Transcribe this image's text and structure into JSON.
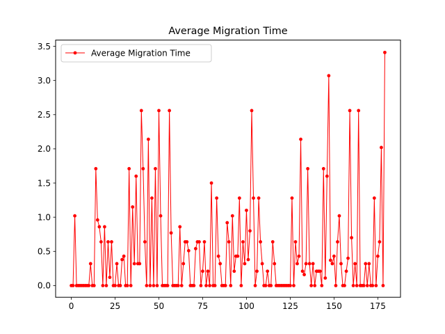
{
  "chart_data": {
    "type": "line",
    "title": "Average Migration Time",
    "xlabel": "",
    "ylabel": "",
    "xlim": [
      -8.95,
      187.95
    ],
    "ylim": [
      -0.171,
      3.591
    ],
    "x_ticks": [
      0,
      25,
      50,
      75,
      100,
      125,
      150,
      175
    ],
    "y_ticks": [
      0.0,
      0.5,
      1.0,
      1.5,
      2.0,
      2.5,
      3.0,
      3.5
    ],
    "x_tick_labels": [
      "0",
      "25",
      "50",
      "75",
      "100",
      "125",
      "150",
      "175"
    ],
    "y_tick_labels": [
      "0.0",
      "0.5",
      "1.0",
      "1.5",
      "2.0",
      "2.5",
      "3.0",
      "3.5"
    ],
    "grid": false,
    "legend_position": "upper left",
    "series": [
      {
        "name": "Average Migration Time",
        "color": "#ff0000",
        "marker": "circle",
        "x": [
          0,
          1,
          2,
          3,
          4,
          5,
          6,
          7,
          8,
          9,
          10,
          11,
          12,
          13,
          14,
          15,
          16,
          17,
          18,
          19,
          20,
          21,
          22,
          23,
          24,
          25,
          26,
          27,
          28,
          29,
          30,
          31,
          32,
          33,
          34,
          35,
          36,
          37,
          38,
          39,
          40,
          41,
          42,
          43,
          44,
          45,
          46,
          47,
          48,
          49,
          50,
          51,
          52,
          53,
          54,
          55,
          56,
          57,
          58,
          59,
          60,
          61,
          62,
          63,
          64,
          65,
          66,
          67,
          68,
          69,
          70,
          71,
          72,
          73,
          74,
          75,
          76,
          77,
          78,
          79,
          80,
          81,
          82,
          83,
          84,
          85,
          86,
          87,
          88,
          89,
          90,
          91,
          92,
          93,
          94,
          95,
          96,
          97,
          98,
          99,
          100,
          101,
          102,
          103,
          104,
          105,
          106,
          107,
          108,
          109,
          110,
          111,
          112,
          113,
          114,
          115,
          116,
          117,
          118,
          119,
          120,
          121,
          122,
          123,
          124,
          125,
          126,
          127,
          128,
          129,
          130,
          131,
          132,
          133,
          134,
          135,
          136,
          137,
          138,
          139,
          140,
          141,
          142,
          143,
          144,
          145,
          146,
          147,
          148,
          149,
          150,
          151,
          152,
          153,
          154,
          155,
          156,
          157,
          158,
          159,
          160,
          161,
          162,
          163,
          164,
          165,
          166,
          167,
          168,
          169,
          170,
          171,
          172,
          173,
          174,
          175,
          176,
          177,
          178,
          179
        ],
        "values": [
          0.0,
          0.0,
          1.02,
          0.0,
          0.0,
          0.0,
          0.0,
          0.0,
          0.0,
          0.0,
          0.0,
          0.32,
          0.0,
          0.0,
          1.71,
          0.96,
          0.86,
          0.64,
          0.0,
          0.86,
          0.0,
          0.64,
          0.12,
          0.64,
          0.0,
          0.0,
          0.32,
          0.0,
          0.0,
          0.38,
          0.43,
          0.0,
          0.0,
          1.71,
          0.0,
          1.15,
          0.32,
          1.6,
          0.32,
          0.32,
          2.56,
          1.71,
          0.64,
          0.0,
          2.14,
          0.0,
          1.28,
          0.0,
          1.71,
          0.0,
          2.56,
          1.02,
          0.0,
          0.0,
          0.0,
          0.0,
          2.56,
          0.77,
          0.0,
          0.0,
          0.0,
          0.0,
          0.86,
          0.0,
          0.32,
          0.64,
          0.64,
          0.51,
          0.0,
          0.0,
          0.0,
          0.54,
          0.64,
          0.64,
          0.0,
          0.21,
          0.64,
          0.0,
          0.21,
          0.0,
          1.5,
          0.0,
          0.0,
          1.28,
          0.43,
          0.32,
          0.0,
          0.0,
          0.0,
          0.92,
          0.64,
          0.0,
          1.02,
          0.21,
          0.43,
          0.43,
          1.28,
          0.0,
          0.64,
          0.32,
          1.1,
          0.38,
          0.8,
          2.56,
          1.28,
          0.0,
          0.21,
          1.28,
          0.64,
          0.32,
          0.0,
          0.0,
          0.21,
          0.0,
          0.0,
          0.64,
          0.32,
          0.0,
          0.0,
          0.0,
          0.0,
          0.0,
          0.0,
          0.0,
          0.0,
          0.0,
          1.28,
          0.0,
          0.64,
          0.32,
          0.43,
          2.14,
          0.21,
          0.16,
          0.32,
          1.71,
          0.32,
          0.0,
          0.32,
          0.0,
          0.21,
          0.21,
          0.21,
          0.0,
          1.71,
          0.11,
          1.6,
          3.07,
          0.37,
          0.32,
          0.43,
          0.0,
          0.64,
          1.02,
          0.32,
          0.0,
          0.0,
          0.21,
          0.4,
          2.56,
          0.7,
          0.0,
          0.32,
          0.0,
          2.56,
          0.0,
          0.0,
          0.0,
          0.32,
          0.0,
          0.32,
          0.0,
          0.0,
          1.28,
          0.0,
          0.43,
          0.64,
          2.02,
          0.0,
          3.41
        ]
      }
    ]
  }
}
